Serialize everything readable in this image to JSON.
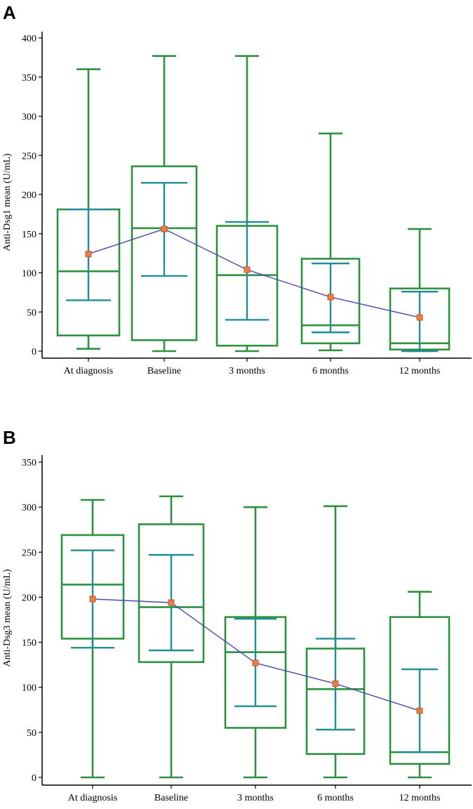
{
  "colors": {
    "box": "#2e9140",
    "errorbar": "#1f8e96",
    "mean_line": "#4a4ab0",
    "mean_marker": "#ef7b45"
  },
  "chart_data": [
    {
      "panel": "A",
      "type": "box",
      "ylabel": "Anti-Dsg1 mean (U/mL)",
      "xlabel": "",
      "ylim": [
        0,
        400
      ],
      "yticks": [
        0,
        50,
        100,
        150,
        200,
        250,
        300,
        350,
        400
      ],
      "categories": [
        "At diagnosis",
        "Baseline",
        "3 months",
        "6 months",
        "12 months"
      ],
      "boxes": [
        {
          "whisker_low": 3,
          "q1": 20,
          "median": 102,
          "q3": 181,
          "whisker_high": 360
        },
        {
          "whisker_low": 0,
          "q1": 14,
          "median": 157,
          "q3": 236,
          "whisker_high": 377
        },
        {
          "whisker_low": 0,
          "q1": 7,
          "median": 97,
          "q3": 160,
          "whisker_high": 377
        },
        {
          "whisker_low": 1,
          "q1": 10,
          "median": 33,
          "q3": 118,
          "whisker_high": 278
        },
        {
          "whisker_low": 0,
          "q1": 2,
          "median": 10,
          "q3": 80,
          "whisker_high": 156
        }
      ],
      "error_bars": [
        {
          "low": 65,
          "high": 181
        },
        {
          "low": 96,
          "high": 215
        },
        {
          "low": 40,
          "high": 165
        },
        {
          "low": 24,
          "high": 112
        },
        {
          "low": 0,
          "high": 76
        }
      ],
      "means": [
        124,
        156,
        104,
        69,
        43
      ]
    },
    {
      "panel": "B",
      "type": "box",
      "ylabel": "Anti-Dsg3 mean (U/mL)",
      "xlabel": "",
      "ylim": [
        0,
        350
      ],
      "yticks": [
        0,
        50,
        100,
        150,
        200,
        250,
        300,
        350
      ],
      "categories": [
        "At diagnosis",
        "Baseline",
        "3 months",
        "6 months",
        "12 months"
      ],
      "boxes": [
        {
          "whisker_low": 0,
          "q1": 154,
          "median": 214,
          "q3": 269,
          "whisker_high": 308
        },
        {
          "whisker_low": 0,
          "q1": 128,
          "median": 189,
          "q3": 281,
          "whisker_high": 312
        },
        {
          "whisker_low": 0,
          "q1": 55,
          "median": 139,
          "q3": 178,
          "whisker_high": 300
        },
        {
          "whisker_low": 0,
          "q1": 26,
          "median": 98,
          "q3": 143,
          "whisker_high": 301
        },
        {
          "whisker_low": 0,
          "q1": 15,
          "median": 28,
          "q3": 178,
          "whisker_high": 206
        }
      ],
      "error_bars": [
        {
          "low": 144,
          "high": 252
        },
        {
          "low": 141,
          "high": 247
        },
        {
          "low": 79,
          "high": 176
        },
        {
          "low": 53,
          "high": 154
        },
        {
          "low": 28,
          "high": 120
        }
      ],
      "means": [
        198,
        194,
        127,
        104,
        74
      ]
    }
  ]
}
